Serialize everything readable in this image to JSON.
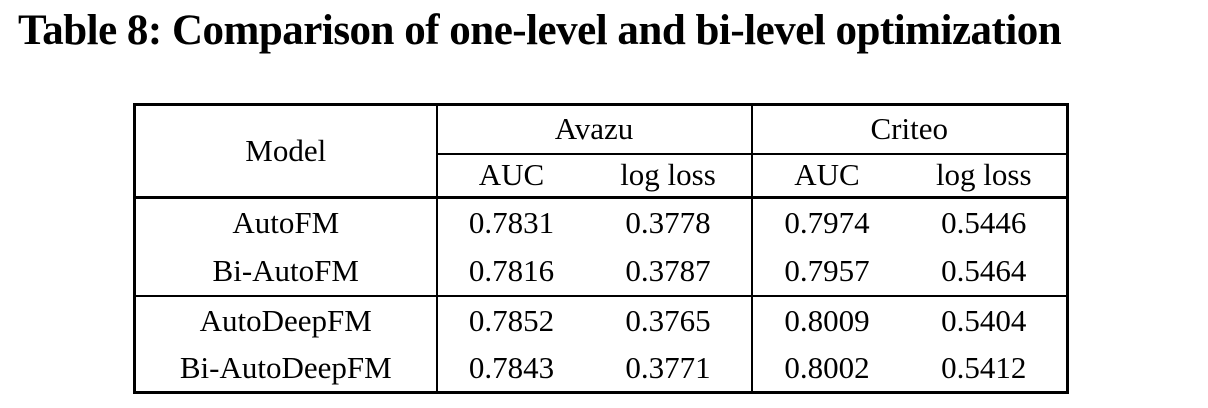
{
  "page": {
    "background": "#ffffff",
    "text_color": "#000000",
    "border_color": "#000000"
  },
  "caption": "Table 8: Comparison of one-level and bi-level optimization",
  "table": {
    "header": {
      "model_label": "Model",
      "groups": [
        {
          "label": "Avazu",
          "metrics": [
            "AUC",
            "log loss"
          ]
        },
        {
          "label": "Criteo",
          "metrics": [
            "AUC",
            "log loss"
          ]
        }
      ]
    },
    "row_groups": [
      {
        "rows": [
          {
            "model": "AutoFM",
            "values_bold": true,
            "values": [
              "0.7831",
              "0.3778",
              "0.7974",
              "0.5446"
            ]
          },
          {
            "model": "Bi-AutoFM",
            "values_bold": false,
            "values": [
              "0.7816",
              "0.3787",
              "0.7957",
              "0.5464"
            ]
          }
        ]
      },
      {
        "rows": [
          {
            "model": "AutoDeepFM",
            "values_bold": true,
            "values": [
              "0.7852",
              "0.3765",
              "0.8009",
              "0.5404"
            ]
          },
          {
            "model": "Bi-AutoDeepFM",
            "values_bold": false,
            "values": [
              "0.7843",
              "0.3771",
              "0.8002",
              "0.5412"
            ]
          }
        ]
      }
    ]
  }
}
